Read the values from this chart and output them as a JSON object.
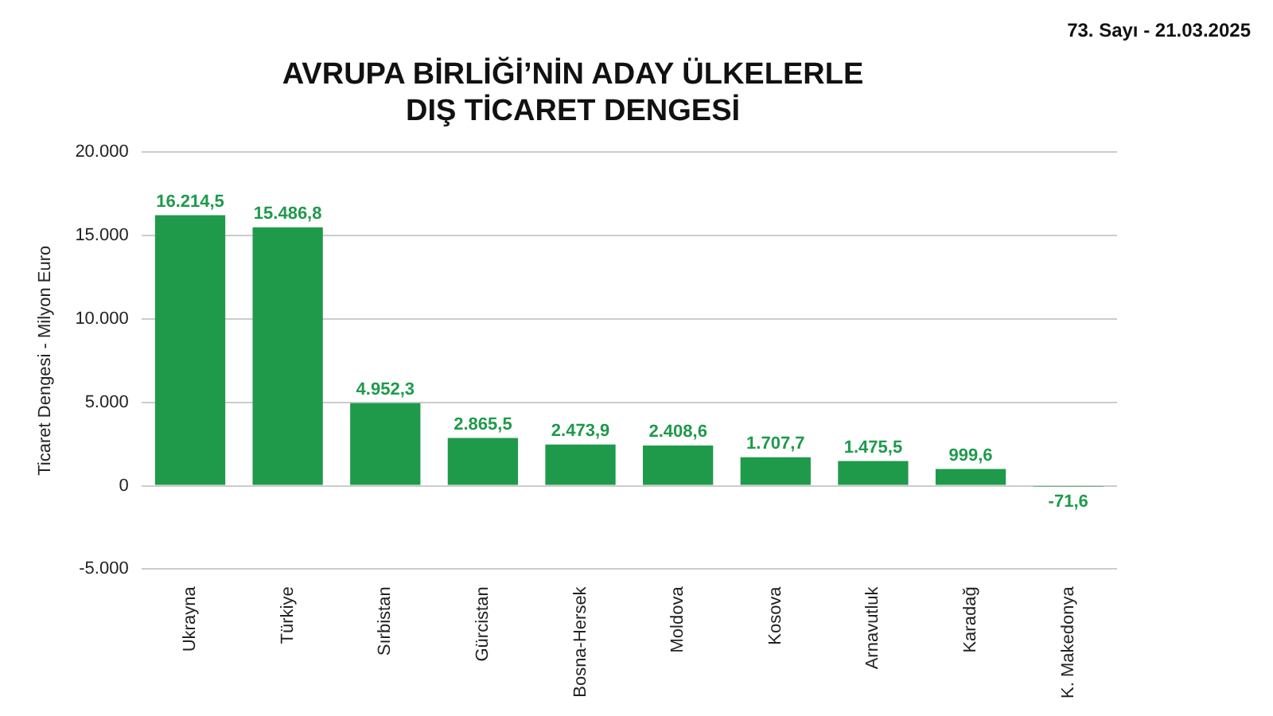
{
  "chart_data": {
    "type": "bar",
    "title": "AVRUPA BİRLİĞİ’NİN ADAY ÜLKELERLE\nDIŞ TİCARET DENGESİ",
    "ylabel": "Ticaret Dengesi - Milyon Euro",
    "annotations": [
      "73. Sayı - 21.03.2025"
    ],
    "categories": [
      "Ukrayna",
      "Türkiye",
      "Sırbistan",
      "Gürcistan",
      "Bosna-Hersek",
      "Moldova",
      "Kosova",
      "Arnavutluk",
      "Karadağ",
      "K. Makedonya"
    ],
    "values": [
      16214.5,
      15486.8,
      4952.3,
      2865.5,
      2473.9,
      2408.6,
      1707.7,
      1475.5,
      999.6,
      -71.6
    ],
    "value_labels": [
      "16.214,5",
      "15.486,8",
      "4.952,3",
      "2.865,5",
      "2.473,9",
      "2.408,6",
      "1.707,7",
      "1.475,5",
      "999,6",
      "-71,6"
    ],
    "color": "#1f9a4b",
    "ylim": [
      -5000,
      20000
    ],
    "yticks": [
      {
        "value": -5000,
        "label": "-5.000"
      },
      {
        "value": 0,
        "label": "0"
      },
      {
        "value": 5000,
        "label": "5.000"
      },
      {
        "value": 10000,
        "label": "10.000"
      },
      {
        "value": 15000,
        "label": "15.000"
      },
      {
        "value": 20000,
        "label": "20.000"
      }
    ],
    "grid": "y",
    "legend": false
  }
}
